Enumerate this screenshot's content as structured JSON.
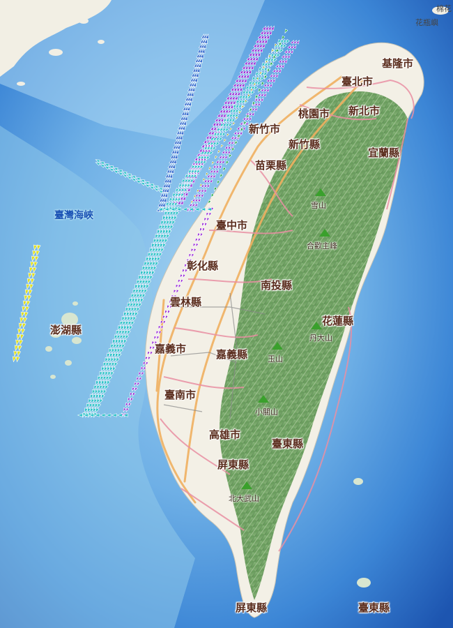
{
  "map": {
    "labels": {
      "keelung": "基隆市",
      "taipei": "臺北市",
      "newtaipei": "新北市",
      "taoyuan": "桃園市",
      "hsinchu_city": "新竹市",
      "hsinchu_county": "新竹縣",
      "yilan": "宜蘭縣",
      "miaoli": "苗栗縣",
      "taichung": "臺中市",
      "changhua": "彰化縣",
      "nantou": "南投縣",
      "yunlin": "雲林縣",
      "hualien": "花蓮縣",
      "chiayi_city": "嘉義市",
      "chiayi_county": "嘉義縣",
      "tainan": "臺南市",
      "kaohsiung": "高雄市",
      "taitung": "臺東縣",
      "pingtung": "屏東縣",
      "pingtung_south": "屏東縣",
      "taitung_south": "臺東縣",
      "penghu": "澎湖縣",
      "strait": "臺灣海峽"
    },
    "mountains": {
      "xueshan": "雪山",
      "hehuan": "合歡主峰",
      "dan": "丹大山",
      "yushan": "玉山",
      "xiaoguan": "小關山",
      "beidawu": "北大武山"
    },
    "corner": {
      "top": "棉花",
      "top2": "花瓶嶼"
    },
    "colors": {
      "deep_sea": "#1f5fb8",
      "shallow_sea": "#8ec6ea",
      "land": "#f3f0e6",
      "mountain_green": "#5f9c52",
      "mountain_dark": "#3e6e3a",
      "road_orange": "#f0b060",
      "road_pink": "#e98fa3",
      "track_blue": "#3a6fd0",
      "track_purple": "#9b30d8",
      "track_cyan": "#2ec2c8",
      "track_olive": "#a09a10",
      "track_green": "#22aa44",
      "track_yellow": "#e2e020"
    }
  }
}
